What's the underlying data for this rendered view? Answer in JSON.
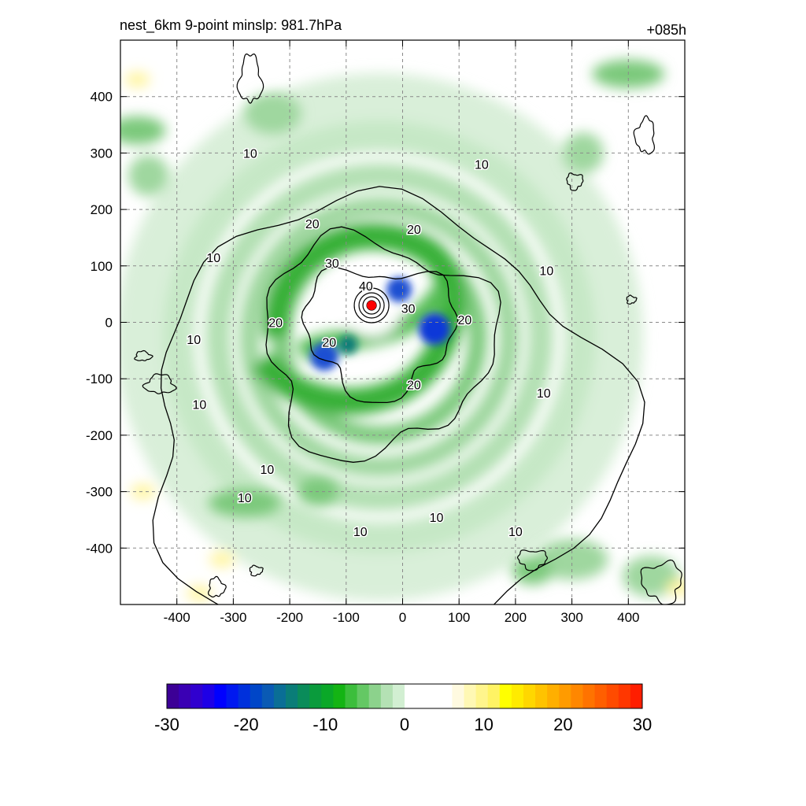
{
  "chart_data": [
    {
      "type": "heatmap",
      "title": "nest_6km  9-point minslp: 981.7hPa",
      "subtitle": "+085h",
      "xlabel": "",
      "ylabel": "",
      "xlim": [
        -500,
        500
      ],
      "ylim": [
        -500,
        500
      ],
      "xticks": [
        -400,
        -300,
        -200,
        -100,
        0,
        100,
        200,
        300,
        400
      ],
      "yticks": [
        -400,
        -300,
        -200,
        -100,
        0,
        100,
        200,
        300,
        400
      ],
      "grid": true,
      "center_marker": {
        "x": -55,
        "y": 30,
        "color": "#ff0000"
      },
      "contour_levels": [
        10,
        20,
        30,
        40
      ],
      "contour_labels": [
        {
          "text": "10",
          "x": -270,
          "y": 300
        },
        {
          "text": "10",
          "x": 140,
          "y": 280
        },
        {
          "text": "10",
          "x": -335,
          "y": 115
        },
        {
          "text": "10",
          "x": 255,
          "y": 92
        },
        {
          "text": "10",
          "x": -370,
          "y": -30
        },
        {
          "text": "10",
          "x": -360,
          "y": -145
        },
        {
          "text": "10",
          "x": 250,
          "y": -125
        },
        {
          "text": "10",
          "x": -240,
          "y": -260
        },
        {
          "text": "10",
          "x": -280,
          "y": -310
        },
        {
          "text": "10",
          "x": -75,
          "y": -370
        },
        {
          "text": "10",
          "x": 60,
          "y": -345
        },
        {
          "text": "10",
          "x": 200,
          "y": -370
        },
        {
          "text": "20",
          "x": -160,
          "y": 175
        },
        {
          "text": "20",
          "x": 20,
          "y": 165
        },
        {
          "text": "20",
          "x": -225,
          "y": 0
        },
        {
          "text": "20",
          "x": 110,
          "y": 5
        },
        {
          "text": "20",
          "x": -130,
          "y": -35
        },
        {
          "text": "20",
          "x": 20,
          "y": -110
        },
        {
          "text": "30",
          "x": -125,
          "y": 105
        },
        {
          "text": "30",
          "x": 10,
          "y": 25
        },
        {
          "text": "40",
          "x": -65,
          "y": 65
        }
      ]
    },
    {
      "type": "colorbar",
      "range": [
        -30,
        30
      ],
      "ticks": [
        "-30",
        "-20",
        "-10",
        "0",
        "10",
        "20",
        "30"
      ],
      "colors": [
        "#3c0096",
        "#3a00b4",
        "#3000cf",
        "#1e00e6",
        "#0000ff",
        "#0018f0",
        "#0030dc",
        "#0046c8",
        "#0a5ab4",
        "#0a6e96",
        "#0a7d78",
        "#0a8c5a",
        "#0a9b3c",
        "#0aa828",
        "#14b414",
        "#3cbe3c",
        "#64c864",
        "#8cd28c",
        "#b4e1b4",
        "#d2efd2",
        "#ffffff",
        "#ffffff",
        "#ffffff",
        "#ffffff",
        "#fffae0",
        "#fff8b4",
        "#fff58c",
        "#fff364",
        "#ffff00",
        "#ffeb00",
        "#ffd700",
        "#ffc300",
        "#ffaf00",
        "#ff9b00",
        "#ff8700",
        "#ff7300",
        "#ff5f00",
        "#ff4b00",
        "#ff3700",
        "#ff1e00"
      ]
    }
  ]
}
